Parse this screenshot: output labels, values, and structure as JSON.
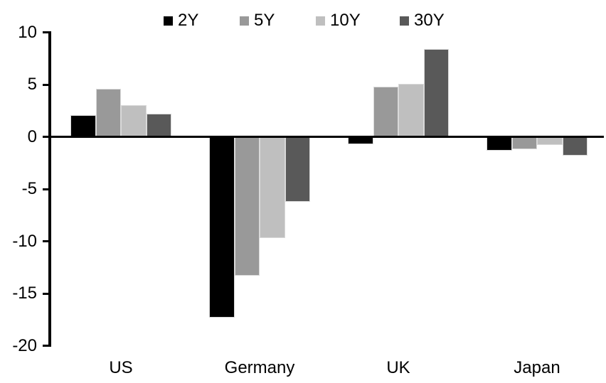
{
  "chart_data": {
    "type": "bar",
    "title": "",
    "categories": [
      "US",
      "Germany",
      "UK",
      "Japan"
    ],
    "series": [
      {
        "name": "2Y",
        "color": "#000000",
        "values": [
          2.1,
          -17.3,
          -0.7,
          -1.3
        ]
      },
      {
        "name": "5Y",
        "color": "#999999",
        "values": [
          4.6,
          -13.3,
          4.8,
          -1.2
        ]
      },
      {
        "name": "10Y",
        "color": "#bfbfbf",
        "values": [
          3.0,
          -9.7,
          5.1,
          -0.8
        ]
      },
      {
        "name": "30Y",
        "color": "#595959",
        "values": [
          2.2,
          -6.2,
          8.4,
          -1.8
        ]
      }
    ],
    "ylim": [
      -20,
      10
    ],
    "yticks": [
      10,
      5,
      0,
      -5,
      -10,
      -15,
      -20
    ],
    "grid": false,
    "legend_position": "top",
    "axis_color": "#000000",
    "bar_outline_color": "#d9d9d9"
  }
}
